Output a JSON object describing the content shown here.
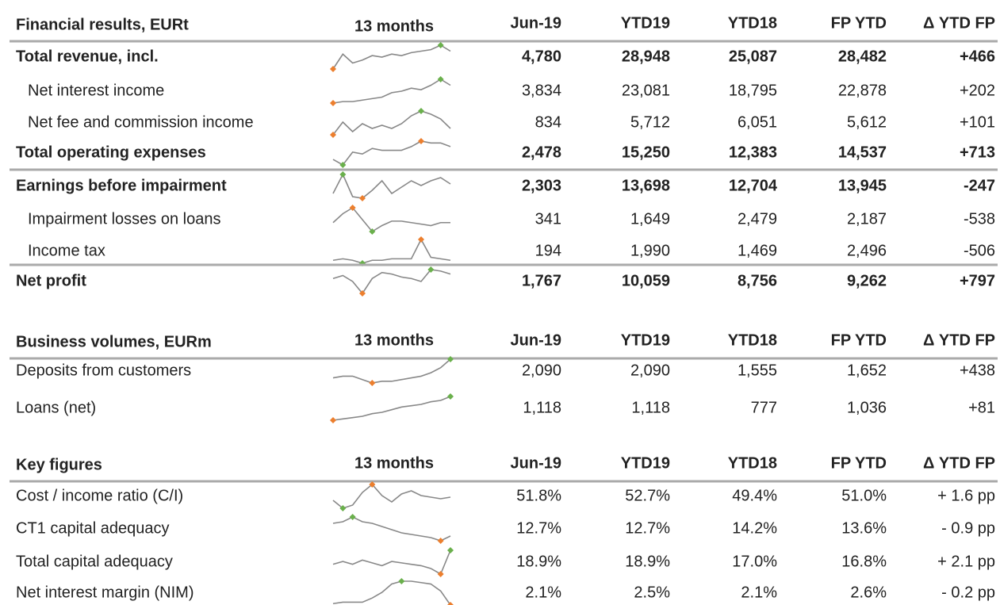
{
  "sections": [
    {
      "title": "Financial results, EURt",
      "columns": [
        "13 months",
        "Jun-19",
        "YTD19",
        "YTD18",
        "FP YTD",
        "Δ YTD FP"
      ],
      "rows": [
        {
          "label": "Total revenue, incl.",
          "bold": true,
          "indent": false,
          "good_high": true,
          "trend": [
            10,
            60,
            30,
            40,
            55,
            50,
            60,
            55,
            65,
            70,
            75,
            90,
            70
          ],
          "cells": [
            "4,780",
            "28,948",
            "25,087",
            "28,482",
            "+466"
          ]
        },
        {
          "label": "Net interest income",
          "bold": false,
          "indent": true,
          "good_high": true,
          "trend": [
            10,
            15,
            15,
            20,
            25,
            30,
            45,
            50,
            60,
            55,
            70,
            90,
            70
          ],
          "cells": [
            "3,834",
            "23,081",
            "18,795",
            "22,878",
            "+202"
          ]
        },
        {
          "label": "Net fee and commission income",
          "bold": false,
          "indent": true,
          "good_high": true,
          "trend": [
            10,
            50,
            20,
            45,
            30,
            40,
            30,
            45,
            70,
            85,
            75,
            60,
            30
          ],
          "cells": [
            "834",
            "5,712",
            "6,051",
            "5,612",
            "+101"
          ]
        },
        {
          "label": "Total operating expenses",
          "bold": true,
          "indent": false,
          "good_high": false,
          "trend": [
            20,
            5,
            40,
            35,
            50,
            45,
            45,
            45,
            55,
            70,
            65,
            65,
            55
          ],
          "cells": [
            "2,478",
            "15,250",
            "12,383",
            "14,537",
            "+713"
          ]
        },
        {
          "label": "Earnings before impairment",
          "bold": true,
          "indent": false,
          "good_high": true,
          "rule_above": true,
          "trend": [
            30,
            90,
            20,
            15,
            40,
            70,
            30,
            50,
            70,
            55,
            70,
            80,
            60
          ],
          "cells": [
            "2,303",
            "13,698",
            "12,704",
            "13,945",
            "-247"
          ]
        },
        {
          "label": "Impairment losses on loans",
          "bold": false,
          "indent": true,
          "good_high": false,
          "trend": [
            40,
            70,
            90,
            50,
            10,
            30,
            45,
            45,
            40,
            35,
            30,
            40,
            40
          ],
          "cells": [
            "341",
            "1,649",
            "2,479",
            "2,187",
            "-538"
          ]
        },
        {
          "label": "Income tax",
          "bold": false,
          "indent": true,
          "good_high": false,
          "trend": [
            20,
            25,
            20,
            10,
            20,
            20,
            25,
            25,
            25,
            90,
            30,
            25,
            20
          ],
          "cells": [
            "194",
            "1,990",
            "1,469",
            "2,496",
            "-506"
          ]
        },
        {
          "label": "Net profit",
          "bold": true,
          "indent": false,
          "good_high": true,
          "rule_above": true,
          "trend": [
            60,
            70,
            50,
            10,
            60,
            80,
            75,
            65,
            60,
            50,
            90,
            85,
            75
          ],
          "cells": [
            "1,767",
            "10,059",
            "8,756",
            "9,262",
            "+797"
          ]
        }
      ]
    },
    {
      "title": "Business volumes, EURm",
      "columns": [
        "13 months",
        "Jun-19",
        "YTD19",
        "YTD18",
        "FP YTD",
        "Δ YTD FP"
      ],
      "rows": [
        {
          "label": "Deposits from customers",
          "bold": false,
          "indent": false,
          "good_high": true,
          "trend": [
            30,
            35,
            35,
            25,
            15,
            20,
            20,
            25,
            30,
            35,
            45,
            60,
            85
          ],
          "cells": [
            "2,090",
            "2,090",
            "1,555",
            "1,652",
            "+438"
          ]
        },
        {
          "label": "Loans (net)",
          "bold": false,
          "indent": false,
          "good_high": true,
          "trend": [
            5,
            10,
            15,
            20,
            30,
            35,
            45,
            55,
            60,
            65,
            75,
            80,
            95
          ],
          "cells": [
            "1,118",
            "1,118",
            "777",
            "1,036",
            "+81"
          ]
        }
      ]
    },
    {
      "title": "Key figures",
      "columns": [
        "13 months",
        "Jun-19",
        "YTD19",
        "YTD18",
        "FP YTD",
        "Δ YTD FP"
      ],
      "rows": [
        {
          "label": "Cost / income ratio (C/I)",
          "bold": false,
          "indent": false,
          "good_high": false,
          "trend": [
            40,
            15,
            25,
            65,
            90,
            55,
            35,
            60,
            70,
            55,
            50,
            45,
            50
          ],
          "cells": [
            "51.8%",
            "52.7%",
            "49.4%",
            "51.0%",
            "+ 1.6 pp"
          ]
        },
        {
          "label": "CT1 capital adequacy",
          "bold": false,
          "indent": false,
          "good_high": true,
          "trend": [
            70,
            75,
            90,
            75,
            70,
            60,
            50,
            40,
            35,
            30,
            25,
            15,
            30
          ],
          "cells": [
            "12.7%",
            "12.7%",
            "14.2%",
            "13.6%",
            "- 0.9 pp"
          ]
        },
        {
          "label": "Total capital adequacy",
          "bold": false,
          "indent": false,
          "good_high": true,
          "trend": [
            40,
            50,
            40,
            55,
            45,
            35,
            50,
            45,
            40,
            35,
            25,
            5,
            90
          ],
          "cells": [
            "18.9%",
            "18.9%",
            "17.0%",
            "16.8%",
            "+ 2.1 pp"
          ]
        },
        {
          "label": "Net interest margin (NIM)",
          "bold": false,
          "indent": false,
          "good_high": true,
          "trend": [
            10,
            15,
            15,
            15,
            30,
            50,
            80,
            90,
            90,
            85,
            80,
            55,
            5
          ],
          "cells": [
            "2.1%",
            "2.5%",
            "2.1%",
            "2.6%",
            "- 0.2 pp"
          ]
        }
      ]
    }
  ]
}
